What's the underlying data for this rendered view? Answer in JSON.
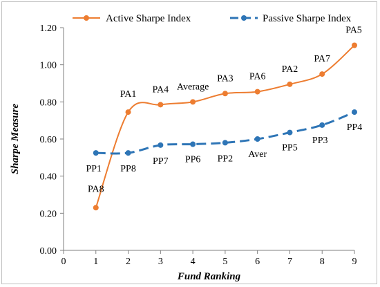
{
  "chart_data": {
    "type": "line",
    "title": "",
    "xlabel": "Fund Ranking",
    "ylabel": "Sharpe Measure",
    "x_ticks": [
      "0",
      "1",
      "2",
      "3",
      "4",
      "5",
      "6",
      "7",
      "8",
      "9"
    ],
    "y_ticks": [
      "0.00",
      "0.20",
      "0.40",
      "0.60",
      "0.80",
      "1.00",
      "1.20"
    ],
    "xlim": [
      0,
      9
    ],
    "ylim": [
      0,
      1.2
    ],
    "grid": false,
    "legend_position": "top",
    "x": [
      1,
      2,
      3,
      4,
      5,
      6,
      7,
      8,
      9
    ],
    "series": [
      {
        "name": "Active Sharpe Index",
        "color": "#ed7d31",
        "line_style": "solid",
        "values": [
          0.23,
          0.745,
          0.785,
          0.8,
          0.845,
          0.855,
          0.895,
          0.95,
          1.105
        ],
        "point_labels": [
          "PA8",
          "PA1",
          "PA4",
          "Average",
          "PA3",
          "PA6",
          "PA2",
          "PA7",
          "PA5"
        ]
      },
      {
        "name": "Passive Sharpe Index",
        "color": "#2e75b6",
        "line_style": "dashed",
        "values": [
          0.525,
          0.525,
          0.567,
          0.572,
          0.58,
          0.6,
          0.635,
          0.675,
          0.745
        ],
        "point_labels": [
          "PP1",
          "PP8",
          "PP7",
          "PP6",
          "PP2",
          "Aver",
          "PP5",
          "PP3",
          "PP4"
        ]
      }
    ]
  }
}
